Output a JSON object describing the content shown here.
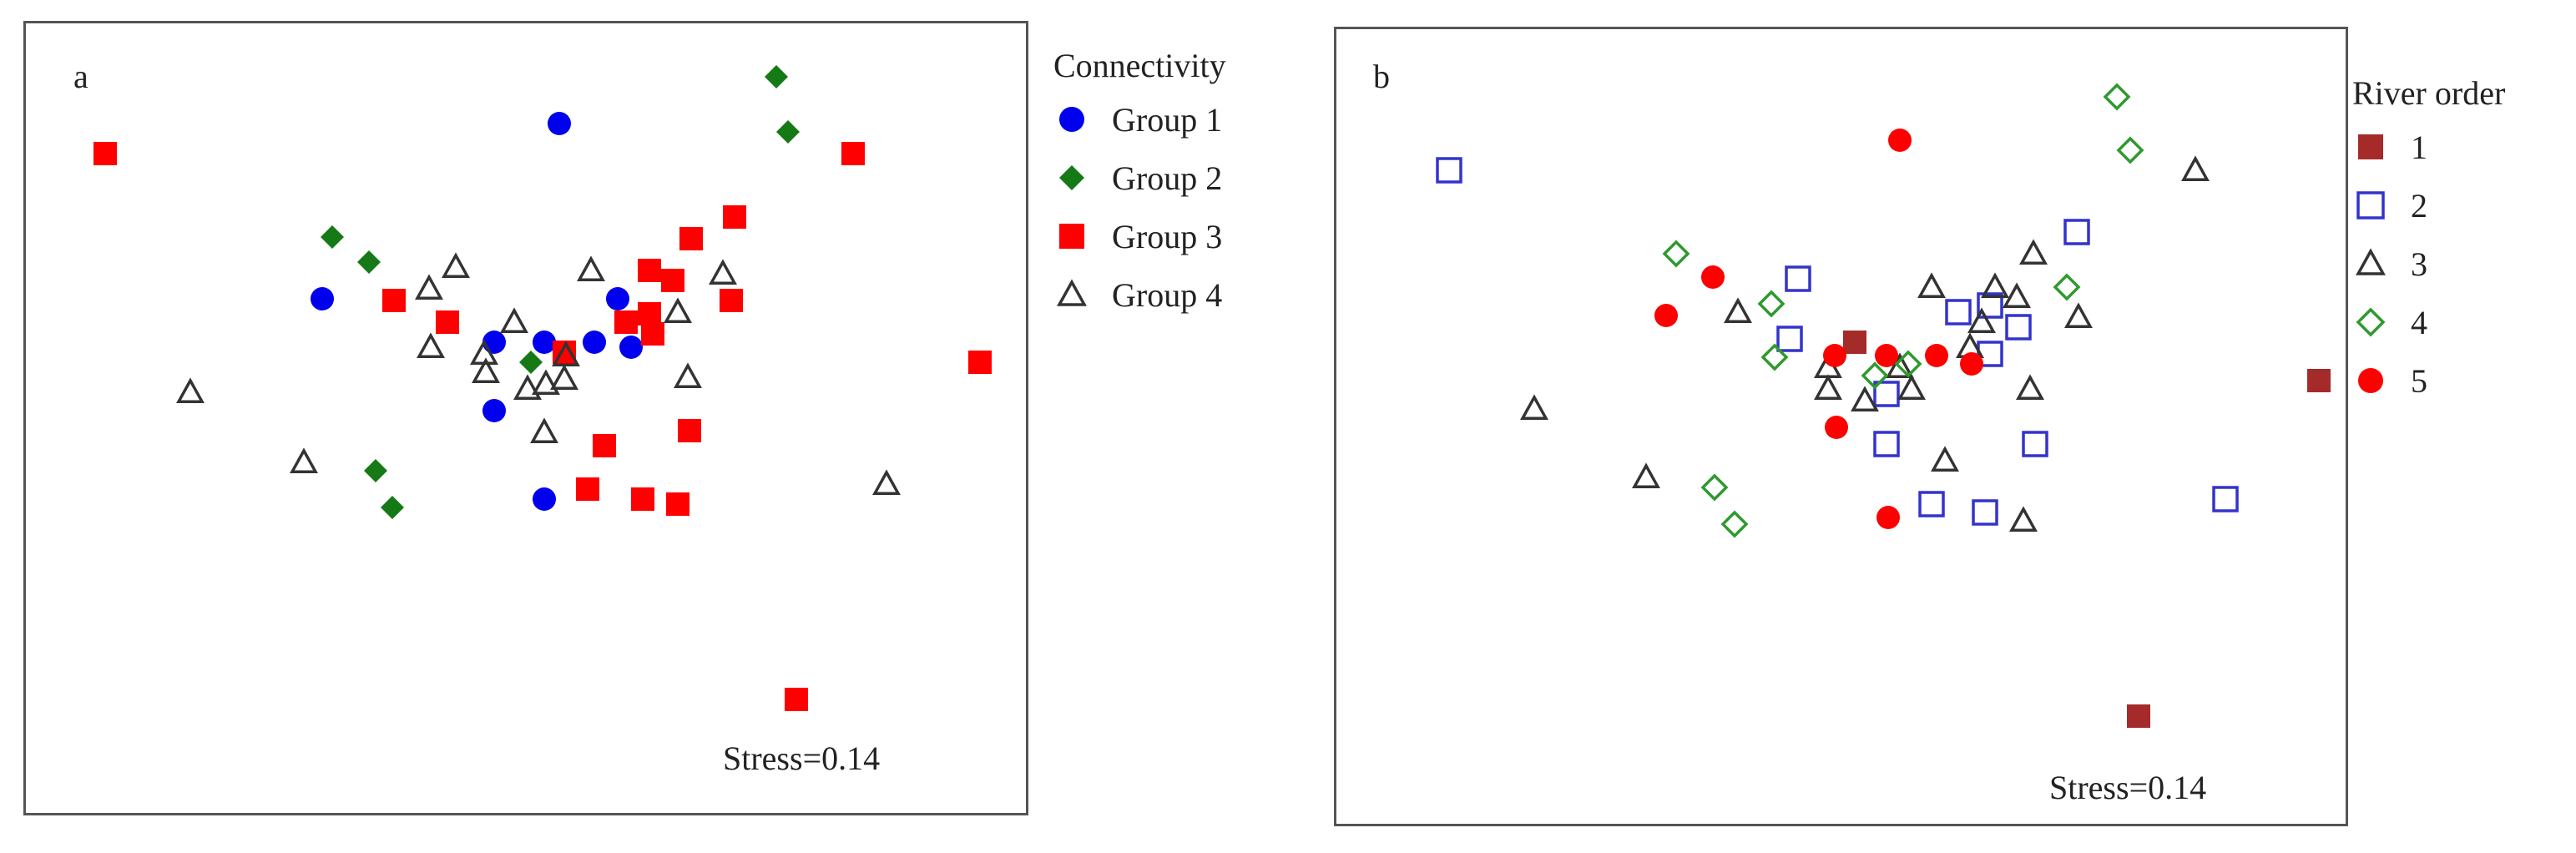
{
  "chart_data": [
    {
      "type": "scatter",
      "panel": "a",
      "annotation": "Stress=0.14",
      "legend_title": "Connectivity",
      "legend_placement": "right, outside",
      "grid": false,
      "series": [
        {
          "name": "Group 1",
          "marker": "circle",
          "color": "#0000ee",
          "filled": true,
          "points": [
            [
              335,
              74
            ],
            [
              193,
              179
            ],
            [
              370,
              179
            ],
            [
              296,
              205
            ],
            [
              326,
              205
            ],
            [
              356,
              205
            ],
            [
              378,
              208
            ],
            [
              296,
              246
            ],
            [
              326,
              299
            ]
          ]
        },
        {
          "name": "Group 2",
          "marker": "diamond",
          "color": "#157a15",
          "filled": true,
          "points": [
            [
              465,
              46
            ],
            [
              472,
              79
            ],
            [
              199,
              142
            ],
            [
              221,
              157
            ],
            [
              318,
              217
            ],
            [
              225,
              282
            ],
            [
              235,
              304
            ]
          ]
        },
        {
          "name": "Group 3",
          "marker": "square",
          "color": "#ff0000",
          "filled": true,
          "points": [
            [
              63,
              92
            ],
            [
              511,
              92
            ],
            [
              440,
              130
            ],
            [
              414,
              143
            ],
            [
              389,
              162
            ],
            [
              403,
              168
            ],
            [
              236,
              180
            ],
            [
              438,
              180
            ],
            [
              268,
              193
            ],
            [
              375,
              193
            ],
            [
              389,
              188
            ],
            [
              391,
              200
            ],
            [
              338,
              211
            ],
            [
              587,
              217
            ],
            [
              413,
              258
            ],
            [
              362,
              267
            ],
            [
              352,
              293
            ],
            [
              385,
              299
            ],
            [
              406,
              302
            ],
            [
              477,
              419
            ]
          ]
        },
        {
          "name": "Group 4",
          "marker": "triangle",
          "color": "#333333",
          "filled": false,
          "points": [
            [
              273,
              160
            ],
            [
              354,
              162
            ],
            [
              433,
              164
            ],
            [
              257,
              173
            ],
            [
              406,
              187
            ],
            [
              308,
              193
            ],
            [
              258,
              208
            ],
            [
              290,
              212
            ],
            [
              339,
              213
            ],
            [
              291,
              223
            ],
            [
              412,
              226
            ],
            [
              316,
              233
            ],
            [
              327,
              230
            ],
            [
              338,
              227
            ],
            [
              114,
              235
            ],
            [
              326,
              259
            ],
            [
              182,
              277
            ],
            [
              531,
              290
            ]
          ]
        }
      ]
    },
    {
      "type": "scatter",
      "panel": "b",
      "annotation": "Stress=0.14",
      "legend_title": "River order",
      "legend_placement": "right, outside",
      "grid": false,
      "series": [
        {
          "name": "1",
          "marker": "square",
          "color": "#a52a2a",
          "filled": true,
          "points": [
            [
              1111,
              205
            ],
            [
              1389,
              228
            ],
            [
              1281,
              429
            ]
          ]
        },
        {
          "name": "2",
          "marker": "square",
          "color": "#3333cc",
          "filled": false,
          "points": [
            [
              868,
              102
            ],
            [
              1244,
              139
            ],
            [
              1077,
              167
            ],
            [
              1173,
              187
            ],
            [
              1192,
              183
            ],
            [
              1209,
              196
            ],
            [
              1072,
              203
            ],
            [
              1192,
              212
            ],
            [
              1130,
              236
            ],
            [
              1130,
              266
            ],
            [
              1219,
              266
            ],
            [
              1333,
              299
            ],
            [
              1157,
              302
            ],
            [
              1189,
              307
            ]
          ]
        },
        {
          "name": "3",
          "marker": "triangle",
          "color": "#333333",
          "filled": false,
          "points": [
            [
              1315,
              102
            ],
            [
              1218,
              152
            ],
            [
              1157,
              172
            ],
            [
              1195,
              172
            ],
            [
              1208,
              178
            ],
            [
              1041,
              187
            ],
            [
              1245,
              190
            ],
            [
              1187,
              193
            ],
            [
              1180,
              208
            ],
            [
              1095,
              220
            ],
            [
              1138,
              220
            ],
            [
              1095,
              233
            ],
            [
              1117,
              240
            ],
            [
              1145,
              233
            ],
            [
              1216,
              233
            ],
            [
              919,
              245
            ],
            [
              1165,
              276
            ],
            [
              986,
              286
            ],
            [
              1212,
              312
            ]
          ]
        },
        {
          "name": "4",
          "marker": "diamond",
          "color": "#2e9a2e",
          "filled": false,
          "points": [
            [
              1268,
              58
            ],
            [
              1276,
              90
            ],
            [
              1004,
              152
            ],
            [
              1061,
              182
            ],
            [
              1238,
              172
            ],
            [
              1063,
              214
            ],
            [
              1123,
              225
            ],
            [
              1143,
              218
            ],
            [
              1027,
              292
            ],
            [
              1039,
              314
            ]
          ]
        },
        {
          "name": "5",
          "marker": "circle",
          "color": "#ff0000",
          "filled": true,
          "points": [
            [
              1138,
              84
            ],
            [
              1026,
              166
            ],
            [
              998,
              189
            ],
            [
              1099,
              213
            ],
            [
              1130,
              213
            ],
            [
              1160,
              213
            ],
            [
              1181,
              218
            ],
            [
              1100,
              256
            ],
            [
              1131,
              310
            ]
          ]
        }
      ]
    }
  ]
}
